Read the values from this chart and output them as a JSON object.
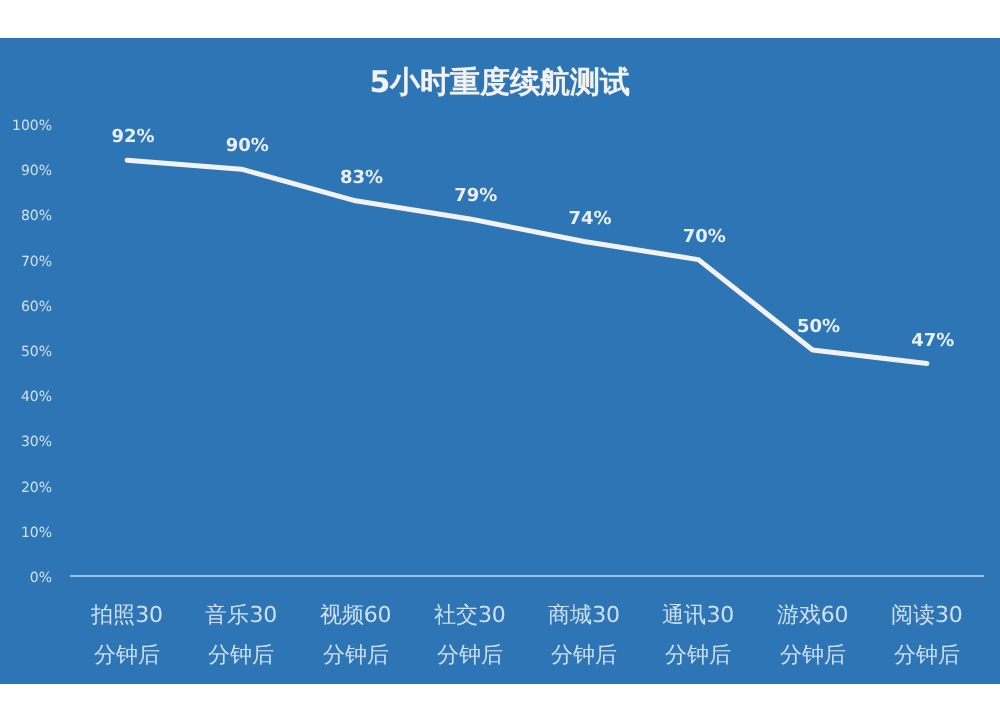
{
  "chart_data": {
    "type": "line",
    "title": "5小时重度续航测试",
    "categories": [
      "拍照30\n分钟后",
      "音乐30\n分钟后",
      "视频60\n分钟后",
      "社交30\n分钟后",
      "商城30\n分钟后",
      "通讯30\n分钟后",
      "游戏60\n分钟后",
      "阅读30\n分钟后"
    ],
    "series": [
      {
        "color": "#f2f2f2",
        "values": [
          92,
          90,
          83,
          79,
          74,
          70,
          50,
          47
        ]
      }
    ],
    "ylim": [
      0,
      100
    ],
    "yticks": [
      {
        "value": 0,
        "label": "0%"
      },
      {
        "value": 10,
        "label": "10%"
      },
      {
        "value": 20,
        "label": "20%"
      },
      {
        "value": 30,
        "label": "30%"
      },
      {
        "value": 40,
        "label": "40%"
      },
      {
        "value": 50,
        "label": "50%"
      },
      {
        "value": 60,
        "label": "60%"
      },
      {
        "value": 70,
        "label": "70%"
      },
      {
        "value": 80,
        "label": "80%"
      },
      {
        "value": 90,
        "label": "90%"
      },
      {
        "value": 100,
        "label": "100%"
      }
    ],
    "value_labels": [
      "92%",
      "90%",
      "83%",
      "79%",
      "74%",
      "70%",
      "50%",
      "47%"
    ],
    "grid": false,
    "marker": "none",
    "line_style": "solid"
  }
}
